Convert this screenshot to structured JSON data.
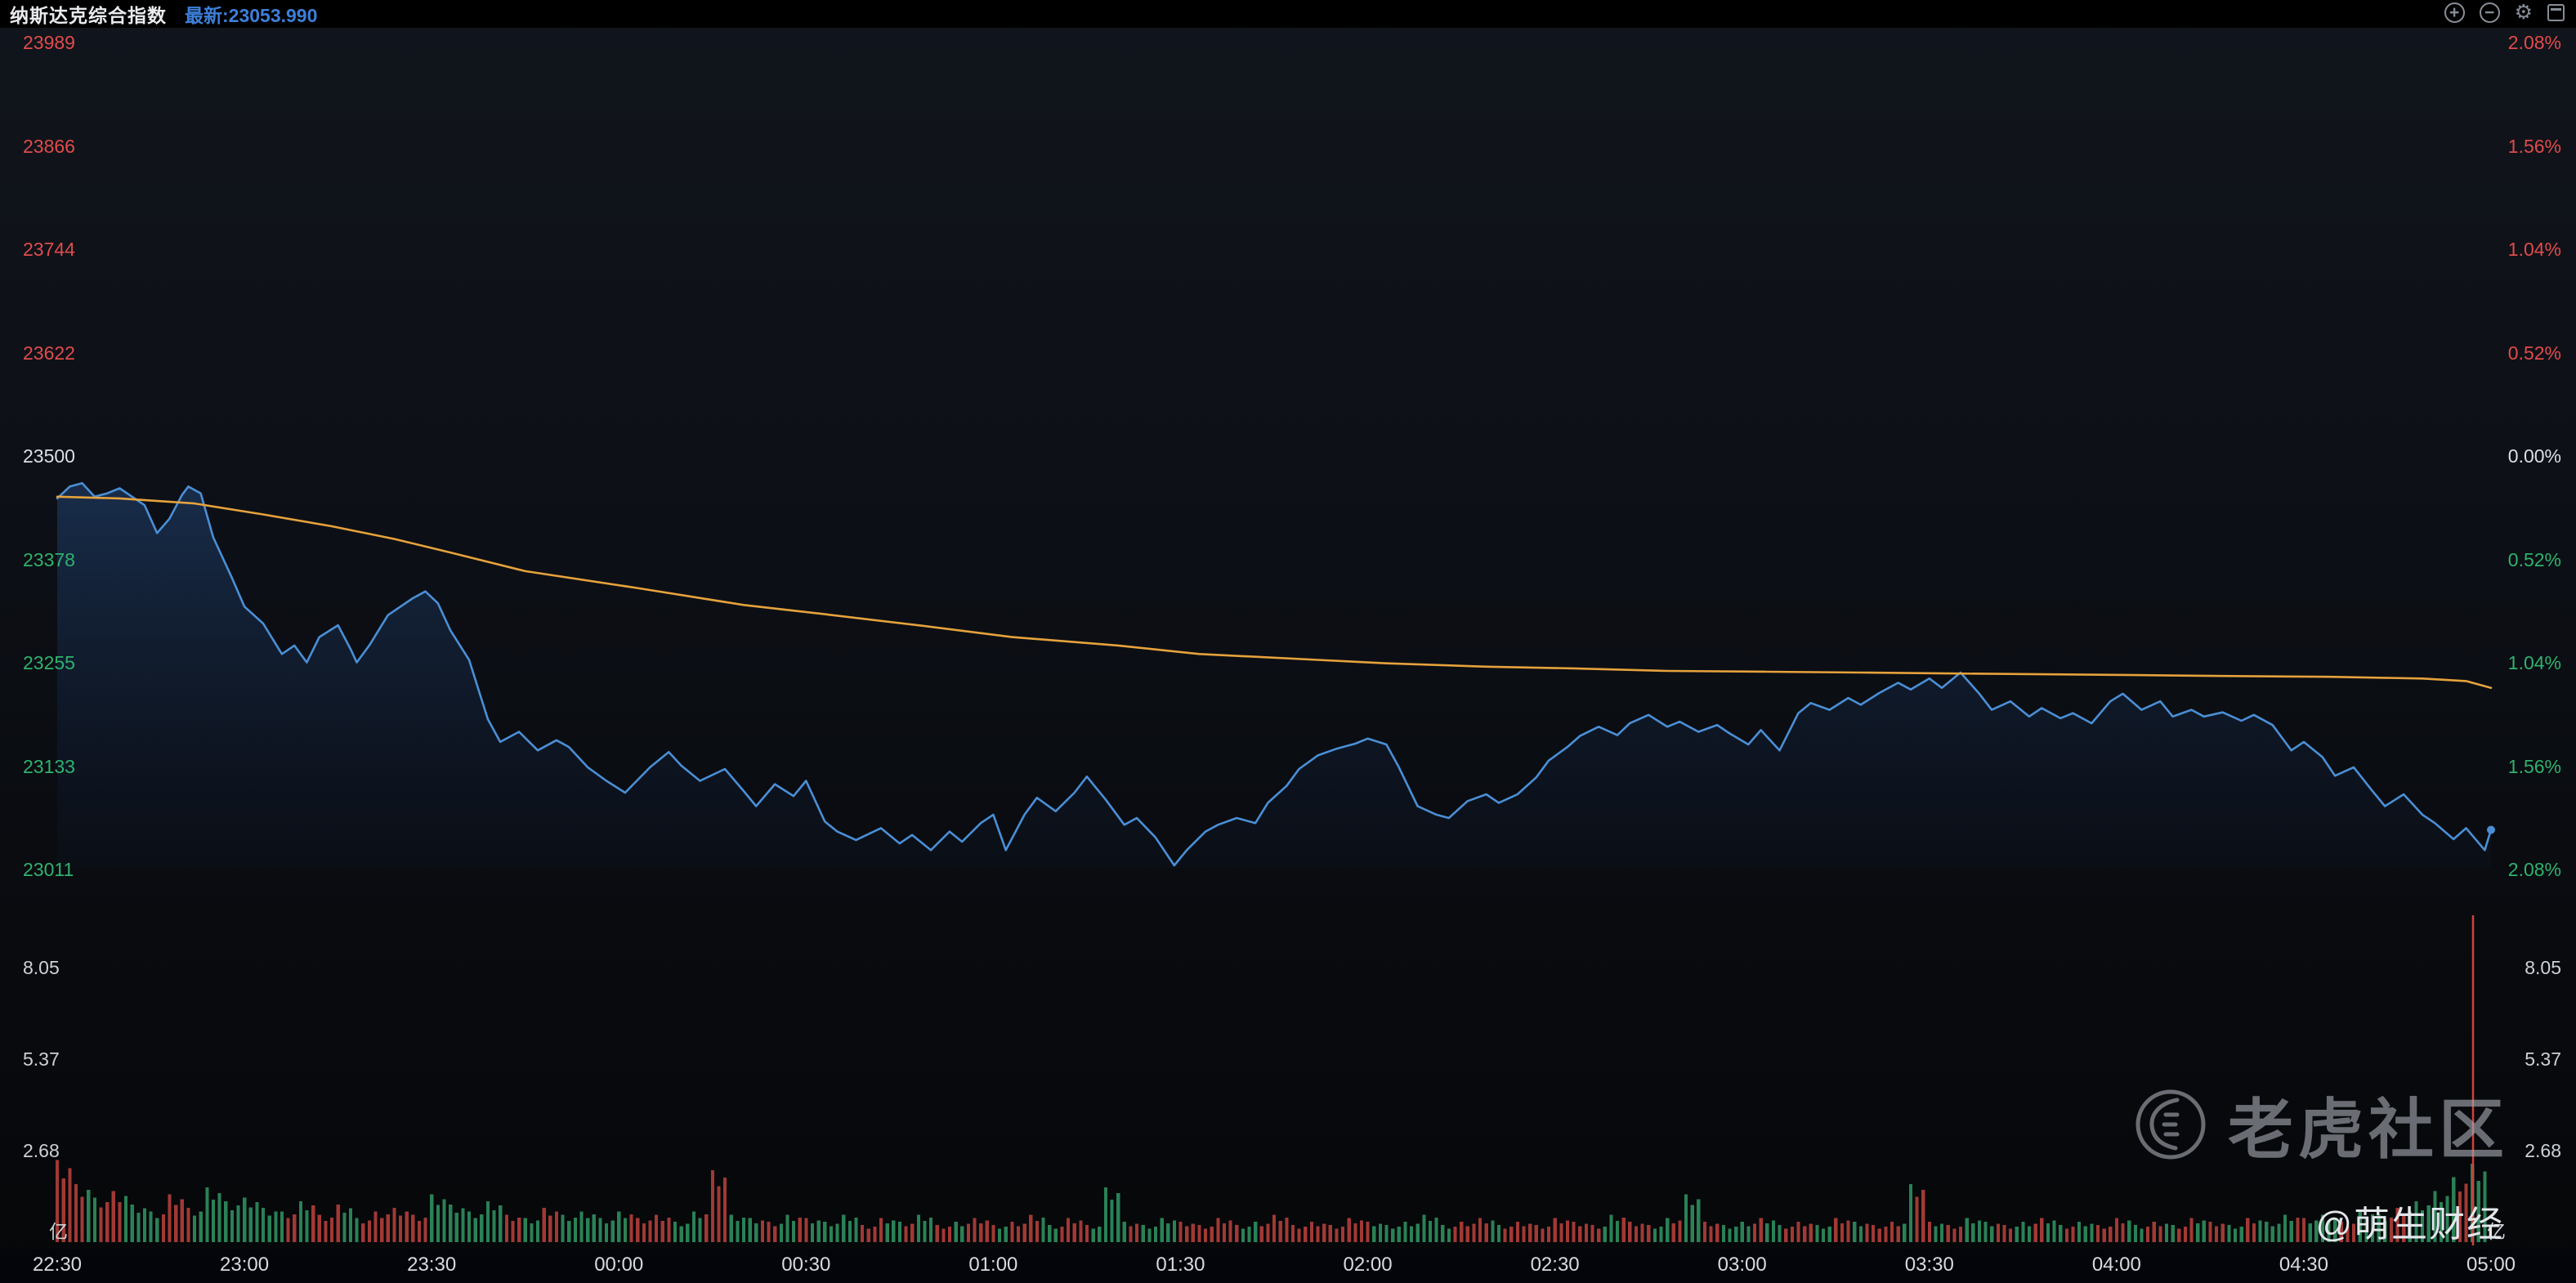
{
  "header": {
    "title": "纳斯达克综合指数",
    "latest_label": "最新:23053.990"
  },
  "toolbar": {
    "zoom_in": "+",
    "zoom_out": "−",
    "settings": "⚙"
  },
  "colors": {
    "up": "#e14b4b",
    "down": "#30b26e",
    "flat": "#dcdfe3",
    "accent_blue": "#3d7fd9",
    "price_line": "#4a8fd6",
    "avg_line": "#e6a23c",
    "volume_up": "#b23f3a",
    "volume_down": "#2f8f5e",
    "cursor_red": "#d0413b"
  },
  "chart_data": {
    "type": "line",
    "title": "纳斯达克综合指数",
    "latest": 23053.99,
    "baseline_price": 23500,
    "x_unit": "minutes_since_22:30",
    "x_range": [
      0,
      390
    ],
    "time_labels": [
      "22:30",
      "23:00",
      "23:30",
      "00:00",
      "00:30",
      "01:00",
      "01:30",
      "02:00",
      "02:30",
      "03:00",
      "03:30",
      "04:00",
      "04:30",
      "05:00"
    ],
    "price_axis": {
      "min": 23011,
      "max": 23989,
      "labels": [
        {
          "text": "23989",
          "tone": "up"
        },
        {
          "text": "23866",
          "tone": "up"
        },
        {
          "text": "23744",
          "tone": "up"
        },
        {
          "text": "23622",
          "tone": "up"
        },
        {
          "text": "23500",
          "tone": "flat"
        },
        {
          "text": "23378",
          "tone": "down"
        },
        {
          "text": "23255",
          "tone": "down"
        },
        {
          "text": "23133",
          "tone": "down"
        },
        {
          "text": "23011",
          "tone": "down"
        }
      ]
    },
    "percent_axis": {
      "labels": [
        {
          "text": "2.08%",
          "tone": "up"
        },
        {
          "text": "1.56%",
          "tone": "up"
        },
        {
          "text": "1.04%",
          "tone": "up"
        },
        {
          "text": "0.52%",
          "tone": "up"
        },
        {
          "text": "0.00%",
          "tone": "flat"
        },
        {
          "text": "0.52%",
          "tone": "down"
        },
        {
          "text": "1.04%",
          "tone": "down"
        },
        {
          "text": "1.56%",
          "tone": "down"
        },
        {
          "text": "2.08%",
          "tone": "down"
        }
      ]
    },
    "series": [
      {
        "name": "price",
        "points": [
          [
            0,
            23446
          ],
          [
            2,
            23460
          ],
          [
            4,
            23464
          ],
          [
            6,
            23448
          ],
          [
            8,
            23452
          ],
          [
            10,
            23458
          ],
          [
            12,
            23448
          ],
          [
            14,
            23438
          ],
          [
            16,
            23405
          ],
          [
            18,
            23422
          ],
          [
            20,
            23450
          ],
          [
            21,
            23460
          ],
          [
            23,
            23452
          ],
          [
            25,
            23400
          ],
          [
            28,
            23352
          ],
          [
            30,
            23318
          ],
          [
            33,
            23298
          ],
          [
            36,
            23262
          ],
          [
            38,
            23272
          ],
          [
            40,
            23252
          ],
          [
            42,
            23282
          ],
          [
            45,
            23296
          ],
          [
            47,
            23268
          ],
          [
            48,
            23252
          ],
          [
            50,
            23272
          ],
          [
            53,
            23308
          ],
          [
            57,
            23328
          ],
          [
            59,
            23336
          ],
          [
            61,
            23322
          ],
          [
            63,
            23290
          ],
          [
            66,
            23255
          ],
          [
            69,
            23185
          ],
          [
            71,
            23158
          ],
          [
            74,
            23170
          ],
          [
            77,
            23148
          ],
          [
            80,
            23160
          ],
          [
            82,
            23152
          ],
          [
            85,
            23128
          ],
          [
            88,
            23112
          ],
          [
            91,
            23098
          ],
          [
            95,
            23128
          ],
          [
            98,
            23146
          ],
          [
            100,
            23130
          ],
          [
            103,
            23112
          ],
          [
            107,
            23126
          ],
          [
            110,
            23100
          ],
          [
            112,
            23082
          ],
          [
            115,
            23108
          ],
          [
            118,
            23094
          ],
          [
            120,
            23112
          ],
          [
            123,
            23064
          ],
          [
            125,
            23052
          ],
          [
            128,
            23042
          ],
          [
            132,
            23056
          ],
          [
            135,
            23038
          ],
          [
            137,
            23048
          ],
          [
            140,
            23030
          ],
          [
            143,
            23052
          ],
          [
            145,
            23040
          ],
          [
            148,
            23062
          ],
          [
            150,
            23072
          ],
          [
            152,
            23030
          ],
          [
            155,
            23072
          ],
          [
            157,
            23092
          ],
          [
            160,
            23076
          ],
          [
            163,
            23098
          ],
          [
            165,
            23117
          ],
          [
            168,
            23090
          ],
          [
            171,
            23060
          ],
          [
            173,
            23068
          ],
          [
            176,
            23045
          ],
          [
            179,
            23012
          ],
          [
            181,
            23030
          ],
          [
            184,
            23052
          ],
          [
            186,
            23060
          ],
          [
            189,
            23068
          ],
          [
            192,
            23062
          ],
          [
            194,
            23086
          ],
          [
            197,
            23106
          ],
          [
            199,
            23126
          ],
          [
            202,
            23142
          ],
          [
            205,
            23150
          ],
          [
            208,
            23156
          ],
          [
            210,
            23162
          ],
          [
            213,
            23155
          ],
          [
            215,
            23128
          ],
          [
            218,
            23082
          ],
          [
            221,
            23072
          ],
          [
            223,
            23068
          ],
          [
            226,
            23088
          ],
          [
            229,
            23096
          ],
          [
            231,
            23086
          ],
          [
            234,
            23096
          ],
          [
            237,
            23116
          ],
          [
            239,
            23136
          ],
          [
            242,
            23152
          ],
          [
            244,
            23165
          ],
          [
            247,
            23176
          ],
          [
            250,
            23166
          ],
          [
            252,
            23180
          ],
          [
            255,
            23190
          ],
          [
            258,
            23176
          ],
          [
            260,
            23182
          ],
          [
            263,
            23170
          ],
          [
            266,
            23178
          ],
          [
            268,
            23168
          ],
          [
            271,
            23155
          ],
          [
            273,
            23172
          ],
          [
            276,
            23148
          ],
          [
            279,
            23192
          ],
          [
            281,
            23204
          ],
          [
            284,
            23196
          ],
          [
            287,
            23210
          ],
          [
            289,
            23202
          ],
          [
            292,
            23216
          ],
          [
            295,
            23228
          ],
          [
            297,
            23220
          ],
          [
            300,
            23233
          ],
          [
            302,
            23222
          ],
          [
            305,
            23240
          ],
          [
            308,
            23215
          ],
          [
            310,
            23196
          ],
          [
            313,
            23206
          ],
          [
            316,
            23188
          ],
          [
            318,
            23198
          ],
          [
            321,
            23186
          ],
          [
            323,
            23192
          ],
          [
            326,
            23180
          ],
          [
            329,
            23206
          ],
          [
            331,
            23215
          ],
          [
            334,
            23196
          ],
          [
            337,
            23206
          ],
          [
            339,
            23188
          ],
          [
            342,
            23196
          ],
          [
            344,
            23188
          ],
          [
            347,
            23193
          ],
          [
            350,
            23183
          ],
          [
            352,
            23190
          ],
          [
            355,
            23178
          ],
          [
            358,
            23148
          ],
          [
            360,
            23158
          ],
          [
            363,
            23140
          ],
          [
            365,
            23118
          ],
          [
            368,
            23128
          ],
          [
            371,
            23100
          ],
          [
            373,
            23082
          ],
          [
            376,
            23096
          ],
          [
            379,
            23072
          ],
          [
            381,
            23062
          ],
          [
            384,
            23043
          ],
          [
            386,
            23056
          ],
          [
            389,
            23030
          ],
          [
            390,
            23054
          ]
        ]
      },
      {
        "name": "avg",
        "points": [
          [
            0,
            23448
          ],
          [
            10,
            23446
          ],
          [
            22,
            23440
          ],
          [
            33,
            23427
          ],
          [
            44,
            23413
          ],
          [
            54,
            23398
          ],
          [
            63,
            23382
          ],
          [
            75,
            23360
          ],
          [
            93,
            23340
          ],
          [
            110,
            23320
          ],
          [
            123,
            23309
          ],
          [
            139,
            23295
          ],
          [
            153,
            23282
          ],
          [
            170,
            23272
          ],
          [
            183,
            23262
          ],
          [
            202,
            23255
          ],
          [
            213,
            23251
          ],
          [
            229,
            23247
          ],
          [
            243,
            23245
          ],
          [
            258,
            23242
          ],
          [
            274,
            23241
          ],
          [
            289,
            23240
          ],
          [
            303,
            23239
          ],
          [
            318,
            23238
          ],
          [
            333,
            23237
          ],
          [
            347,
            23236
          ],
          [
            364,
            23235
          ],
          [
            379,
            23233
          ],
          [
            386,
            23230
          ],
          [
            390,
            23222
          ]
        ]
      }
    ],
    "volume": {
      "unit": "亿",
      "axis_labels": [
        "8.05",
        "5.37",
        "2.68"
      ],
      "step_minutes": 3,
      "values": [
        2.4,
        1.7,
        1.3,
        1.5,
        1.1,
        0.9,
        1.4,
        1.0,
        1.6,
        1.2,
        1.3,
        1.0,
        0.9,
        1.2,
        0.8,
        1.1,
        0.7,
        0.9,
        1.0,
        0.8,
        1.4,
        1.1,
        0.9,
        1.2,
        0.8,
        0.7,
        1.0,
        0.8,
        0.9,
        0.7,
        0.9,
        0.7,
        0.8,
        0.6,
        0.9,
        2.1,
        0.8,
        0.7,
        0.6,
        0.8,
        0.7,
        0.6,
        0.8,
        0.5,
        0.7,
        0.6,
        0.8,
        0.5,
        0.6,
        0.7,
        0.5,
        0.6,
        0.8,
        0.5,
        0.7,
        0.5,
        1.6,
        0.6,
        0.5,
        0.7,
        0.6,
        0.5,
        0.7,
        0.5,
        0.6,
        0.8,
        0.5,
        0.6,
        0.5,
        0.7,
        0.6,
        0.5,
        0.6,
        0.8,
        0.5,
        0.6,
        0.7,
        0.5,
        0.6,
        0.5,
        0.7,
        0.6,
        0.5,
        0.8,
        0.6,
        0.5,
        0.7,
        1.4,
        0.6,
        0.5,
        0.6,
        0.7,
        0.5,
        0.6,
        0.5,
        0.7,
        0.6,
        0.5,
        0.6,
        1.7,
        0.6,
        0.5,
        0.7,
        0.6,
        0.5,
        0.6,
        0.7,
        0.5,
        0.6,
        0.5,
        0.7,
        0.5,
        0.6,
        0.5,
        0.7,
        0.6,
        0.5,
        0.7,
        0.6,
        0.8,
        0.7,
        0.8,
        0.6,
        0.9,
        0.8,
        1.0,
        1.2,
        1.5,
        1.9,
        2.3
      ]
    }
  },
  "watermark": {
    "brand": "老虎社区",
    "author": "@萌生财经"
  }
}
